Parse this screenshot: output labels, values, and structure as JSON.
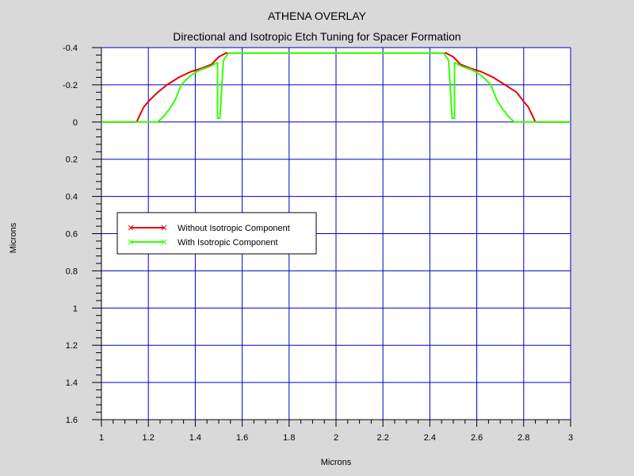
{
  "title": "ATHENA OVERLAY",
  "subtitle": "Directional and Isotropic Etch Tuning for Spacer Formation",
  "colors": {
    "background": "#d9d9d9",
    "plot_bg": "#ffffff",
    "grid": "#0000c8",
    "series1": "#e60000",
    "series2": "#33ff00"
  },
  "chart_data": {
    "type": "line",
    "title": "ATHENA OVERLAY",
    "subtitle": "Directional and Isotropic Etch Tuning for Spacer Formation",
    "xlabel": "Microns",
    "ylabel": "Microns",
    "xlim": [
      1,
      3
    ],
    "ylim": [
      -0.4,
      1.6
    ],
    "y_inverted": true,
    "grid": true,
    "xticks": [
      "1",
      "1.2",
      "1.4",
      "1.6",
      "1.8",
      "2",
      "2.2",
      "2.4",
      "2.6",
      "2.8",
      "3"
    ],
    "xtick_values": [
      1,
      1.2,
      1.4,
      1.6,
      1.8,
      2,
      2.2,
      2.4,
      2.6,
      2.8,
      3
    ],
    "yticks": [
      "-0.4",
      "-0.2",
      "0",
      "0.2",
      "0.4",
      "0.6",
      "0.8",
      "1",
      "1.2",
      "1.4",
      "1.6"
    ],
    "ytick_values": [
      -0.4,
      -0.2,
      0,
      0.2,
      0.4,
      0.6,
      0.8,
      1,
      1.2,
      1.4,
      1.6
    ],
    "legend_position": "middle-left",
    "series": [
      {
        "name": "Without Isotropic Component",
        "color": "#e60000",
        "x": [
          1.0,
          1.15,
          1.165,
          1.18,
          1.2,
          1.24,
          1.28,
          1.33,
          1.38,
          1.43,
          1.47,
          1.5,
          1.53,
          2.47,
          2.5,
          2.53,
          2.57,
          2.62,
          2.67,
          2.72,
          2.77,
          2.8,
          2.82,
          2.835,
          2.85,
          3.0
        ],
        "y": [
          0,
          0,
          -0.04,
          -0.08,
          -0.11,
          -0.16,
          -0.2,
          -0.24,
          -0.27,
          -0.29,
          -0.31,
          -0.35,
          -0.37,
          -0.37,
          -0.35,
          -0.31,
          -0.29,
          -0.27,
          -0.24,
          -0.2,
          -0.16,
          -0.11,
          -0.08,
          -0.04,
          0,
          0
        ]
      },
      {
        "name": "With Isotropic Component",
        "color": "#33ff00",
        "x": [
          1.0,
          1.24,
          1.265,
          1.29,
          1.315,
          1.34,
          1.38,
          1.42,
          1.465,
          1.495,
          1.495,
          1.505,
          1.52,
          1.54,
          2.46,
          2.48,
          2.495,
          2.505,
          2.505,
          2.535,
          2.58,
          2.62,
          2.66,
          2.685,
          2.71,
          2.735,
          2.76,
          3.0
        ],
        "y": [
          0,
          0,
          -0.03,
          -0.07,
          -0.12,
          -0.2,
          -0.25,
          -0.28,
          -0.3,
          -0.32,
          -0.02,
          -0.02,
          -0.33,
          -0.37,
          -0.37,
          -0.33,
          -0.02,
          -0.02,
          -0.32,
          -0.3,
          -0.28,
          -0.25,
          -0.2,
          -0.12,
          -0.07,
          -0.03,
          0,
          0
        ]
      }
    ]
  }
}
